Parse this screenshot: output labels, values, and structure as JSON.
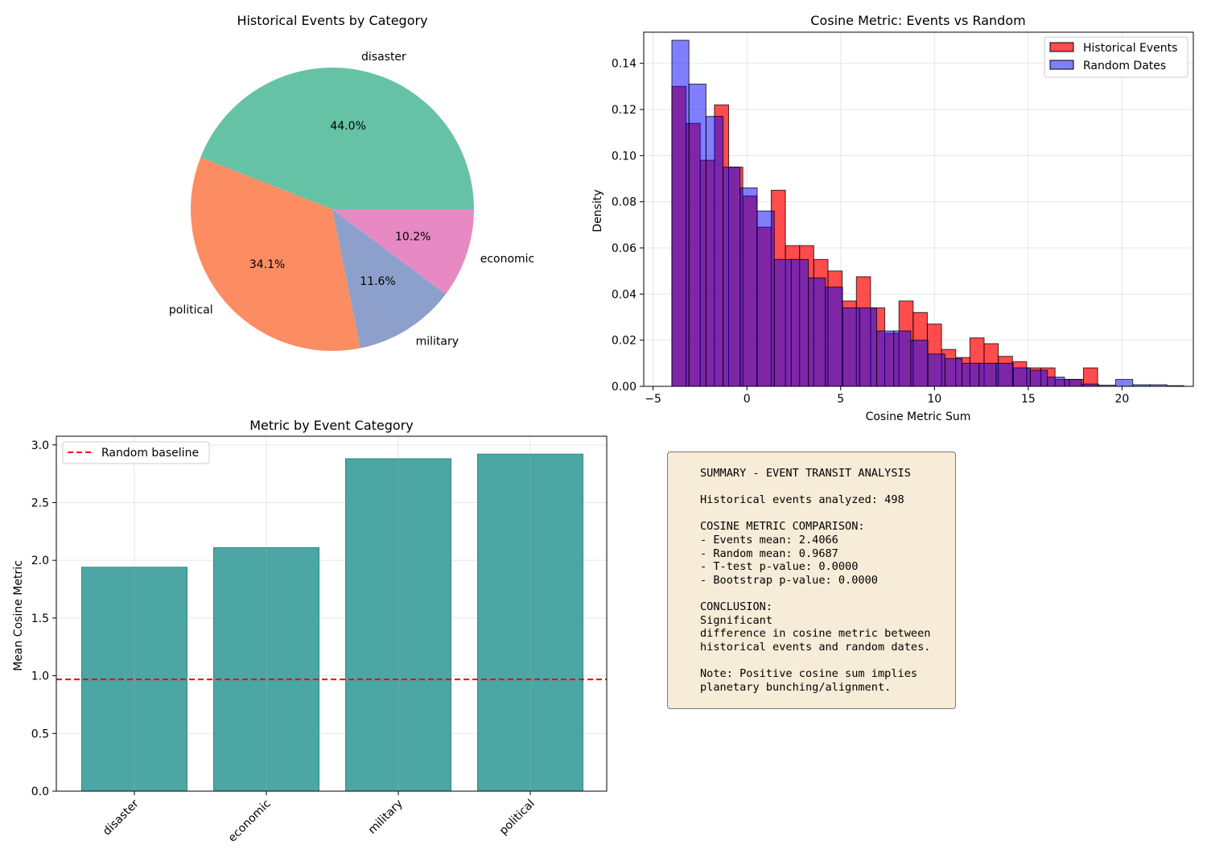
{
  "chart_data": [
    {
      "type": "pie",
      "title": "Historical Events by Category",
      "labels": [
        "disaster",
        "political",
        "military",
        "economic"
      ],
      "values": [
        44.0,
        34.1,
        11.6,
        10.2
      ],
      "autopct_labels": [
        "44.0%",
        "34.1%",
        "11.6%",
        "10.2%"
      ],
      "colors": [
        "#66c2a5",
        "#fc8d62",
        "#8da0cb",
        "#e78ac3"
      ],
      "start_angle_deg": 0,
      "direction": "counterclockwise"
    },
    {
      "type": "bar",
      "subtype": "histogram",
      "title": "Cosine Metric: Events vs Random",
      "xlabel": "Cosine Metric Sum",
      "ylabel": "Density",
      "xlim": [
        -5.5,
        23.8
      ],
      "ylim": [
        0,
        0.1535
      ],
      "xticks": [
        -5,
        0,
        5,
        10,
        15,
        20
      ],
      "xtick_labels": [
        "-5",
        "0",
        "5",
        "10",
        "15",
        "20"
      ],
      "yticks": [
        0.0,
        0.02,
        0.04,
        0.06,
        0.08,
        0.1,
        0.12,
        0.14
      ],
      "ytick_labels": [
        "0.00",
        "0.02",
        "0.04",
        "0.06",
        "0.08",
        "0.10",
        "0.12",
        "0.14"
      ],
      "grid": true,
      "legend": "top-right",
      "series": [
        {
          "name": "Historical Events",
          "color": "#ff0000",
          "alpha": 0.7,
          "bin_start": -4.0,
          "bin_end": 18.7,
          "values": [
            0.13,
            0.114,
            0.098,
            0.122,
            0.095,
            0.0825,
            0.069,
            0.085,
            0.061,
            0.061,
            0.055,
            0.05,
            0.037,
            0.0475,
            0.034,
            0.023,
            0.037,
            0.032,
            0.027,
            0.016,
            0.0125,
            0.021,
            0.0185,
            0.013,
            0.0107,
            0.008,
            0.008,
            0.003,
            0.003,
            0.008
          ]
        },
        {
          "name": "Random Dates",
          "color": "#0000ff",
          "alpha": 0.5,
          "bin_start": -4.0,
          "bin_end": 23.3,
          "values": [
            0.15,
            0.131,
            0.117,
            0.095,
            0.086,
            0.076,
            0.055,
            0.055,
            0.047,
            0.043,
            0.034,
            0.034,
            0.024,
            0.024,
            0.02,
            0.014,
            0.012,
            0.01,
            0.01,
            0.01,
            0.008,
            0.007,
            0.004,
            0.003,
            0.001,
            0.0005,
            0.003,
            0.0007,
            0.0007,
            0.0003
          ]
        }
      ]
    },
    {
      "type": "bar",
      "title": "Metric by Event Category",
      "xlabel": "",
      "ylabel": "Mean Cosine Metric",
      "categories": [
        "disaster",
        "economic",
        "military",
        "political"
      ],
      "values": [
        1.94,
        2.11,
        2.88,
        2.92
      ],
      "color": "#4ba6a4",
      "ylim": [
        0,
        3.075
      ],
      "yticks": [
        0.0,
        0.5,
        1.0,
        1.5,
        2.0,
        2.5,
        3.0
      ],
      "ytick_labels": [
        "0.0",
        "0.5",
        "1.0",
        "1.5",
        "2.0",
        "2.5",
        "3.0"
      ],
      "grid": true,
      "legend": "top-left",
      "baseline": {
        "label": "Random baseline",
        "value": 0.9687,
        "color": "#ff0000",
        "style": "dashed"
      }
    }
  ],
  "summary": {
    "lines": [
      "SUMMARY - EVENT TRANSIT ANALYSIS",
      "",
      "Historical events analyzed: 498",
      "",
      "COSINE METRIC COMPARISON:",
      "- Events mean: 2.4066",
      "- Random mean: 0.9687",
      "- T-test p-value: 0.0000",
      "- Bootstrap p-value: 0.0000",
      "",
      "CONCLUSION:",
      "Significant",
      "difference in cosine metric between",
      "historical events and random dates.",
      "",
      "Note: Positive cosine sum implies",
      "planetary bunching/alignment."
    ]
  }
}
